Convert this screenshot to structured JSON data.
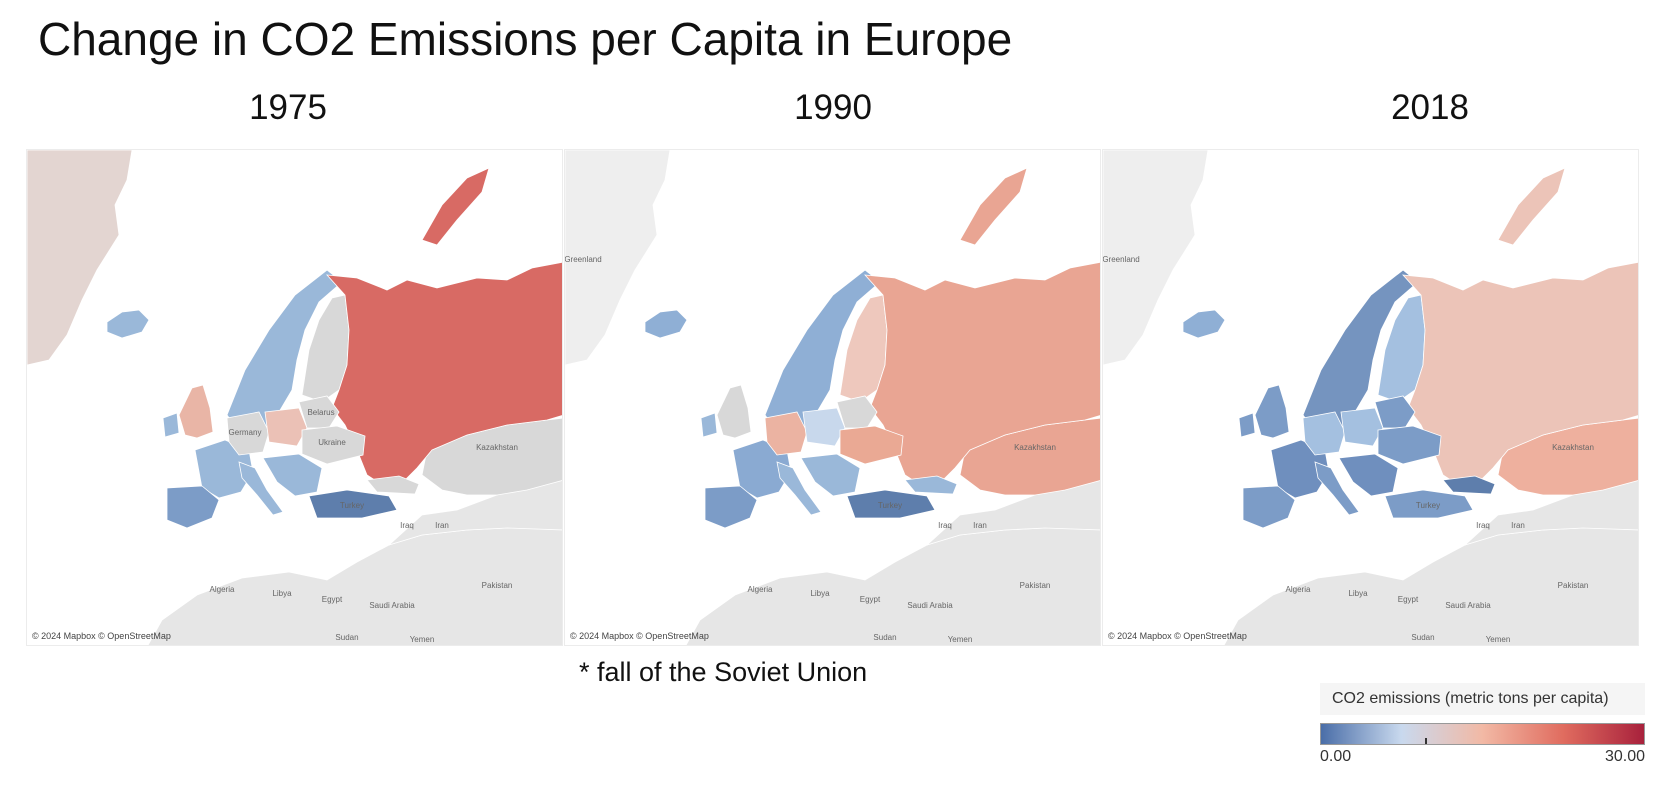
{
  "title": "Change in CO2 Emissions per Capita in Europe",
  "maps": [
    {
      "year": "1975",
      "credit": "© 2024 Mapbox © OpenStreetMap",
      "colors": {
        "russia": "#d86a64",
        "scandinavia": "#9ab8d9",
        "finland": "#d8d8d8",
        "iceland": "#9ab8d9",
        "uk": "#e9b5a6",
        "ireland": "#9ab8d9",
        "france": "#9ab8d9",
        "iberia": "#7c9cc7",
        "germany": "#d8d8d8",
        "poland": "#ebc1b6",
        "italy": "#9ab8d9",
        "balkans": "#9ab8d9",
        "turkey": "#5e7eac",
        "caucasus": "#d8d8d8",
        "kazakhstan": "#d8d8d8",
        "ukraine": "#d8d8d8",
        "belarus": "#d8d8d8",
        "greenland": "#e3d5d1"
      },
      "labels": [
        "Germany",
        "Belarus",
        "Ukraine",
        "Kazakhstan",
        "Iraq",
        "Iran",
        "Algeria",
        "Libya",
        "Egypt",
        "Saudi Arabia",
        "Pakistan",
        "Sudan",
        "Yemen",
        "Turkey"
      ]
    },
    {
      "year": "1990",
      "credit": "© 2024 Mapbox © OpenStreetMap",
      "colors": {
        "russia": "#e9a593",
        "scandinavia": "#8fafd5",
        "finland": "#eec8bd",
        "iceland": "#8fafd5",
        "uk": "#d8d8d8",
        "ireland": "#9ab8d9",
        "france": "#8aaad2",
        "iberia": "#7c9cc7",
        "germany": "#ebb3a2",
        "poland": "#c8d8ec",
        "italy": "#9ab8d9",
        "balkans": "#9ab8d9",
        "turkey": "#5e7eac",
        "caucasus": "#9ab8d9",
        "kazakhstan": "#e9a593",
        "ukraine": "#eaa994",
        "belarus": "#d8d8d8",
        "greenland": "#eeeeee"
      },
      "labels": [
        "Greenland",
        "Kazakhstan",
        "Iraq",
        "Iran",
        "Algeria",
        "Libya",
        "Egypt",
        "Saudi Arabia",
        "Pakistan",
        "Sudan",
        "Yemen",
        "Turkey"
      ]
    },
    {
      "year": "2018",
      "credit": "© 2024 Mapbox © OpenStreetMap",
      "colors": {
        "russia": "#ecc4b8",
        "scandinavia": "#7594bf",
        "finland": "#a4c0e0",
        "iceland": "#8fafd5",
        "uk": "#7c9cc7",
        "ireland": "#7c9cc7",
        "france": "#6f8fbe",
        "iberia": "#7c9cc7",
        "germany": "#a4c0e0",
        "poland": "#a4c0e0",
        "italy": "#7c9cc7",
        "balkans": "#6f8fbe",
        "turkey": "#7c9cc7",
        "caucasus": "#5e7eac",
        "kazakhstan": "#eeb09e",
        "ukraine": "#7c9cc7",
        "belarus": "#7c9cc7",
        "greenland": "#eeeeee"
      },
      "labels": [
        "Greenland",
        "Kazakhstan",
        "Iraq",
        "Iran",
        "Algeria",
        "Libya",
        "Egypt",
        "Saudi Arabia",
        "Pakistan",
        "Sudan",
        "Yemen",
        "Turkey"
      ]
    }
  ],
  "footnote": "* fall of the Soviet Union",
  "legend": {
    "title": "CO2 emissions (metric tons per capita)",
    "min": "0.00",
    "max": "30.00",
    "colors": [
      "#4a6ea8",
      "#c9d9ee",
      "#f2b9a5",
      "#e06c5f",
      "#a8213c"
    ]
  }
}
